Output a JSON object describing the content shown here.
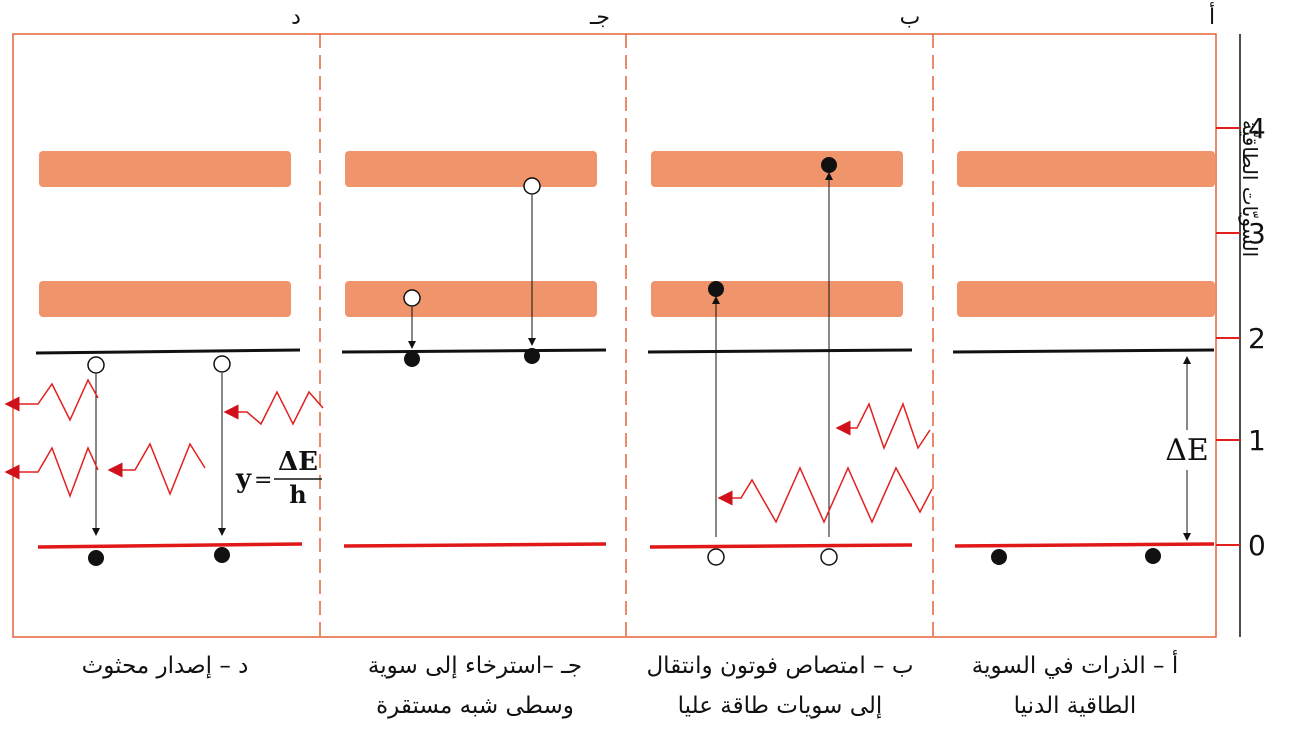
{
  "axis": {
    "title": "السويّات الطاقيّة",
    "ticks": [
      "0",
      "1",
      "2",
      "3",
      "4"
    ]
  },
  "panels": [
    {
      "letter": "أ",
      "caption_line1": "أ – الذرات في السوية",
      "caption_line2": "الطاقية الدنيا"
    },
    {
      "letter": "ب",
      "caption_line1": "ب – امتصاص فوتون وانتقال",
      "caption_line2": "إلى سويات طاقة عليا"
    },
    {
      "letter": "جـ",
      "caption_line1": "جـ –استرخاء إلى سوية",
      "caption_line2": "وسطى شبه مستقرة"
    },
    {
      "letter": "د",
      "caption_line1": "د – إصدار محثوث",
      "caption_line2": ""
    }
  ],
  "labels": {
    "delta_e": "ΔE",
    "formula_lhs": "y",
    "formula_eq": "=",
    "formula_num": "ΔE",
    "formula_den": "h"
  },
  "colors": {
    "frame": "#e4643a",
    "band": "#f0956b",
    "ground_level": "#e01818",
    "meta_level": "#111111",
    "photon": "#e22020",
    "axis_tick": "#e22020"
  },
  "icons": {
    "filled_atom": "filled-circle",
    "empty_atom": "hollow-circle",
    "photon": "zigzag-wave-arrow"
  }
}
